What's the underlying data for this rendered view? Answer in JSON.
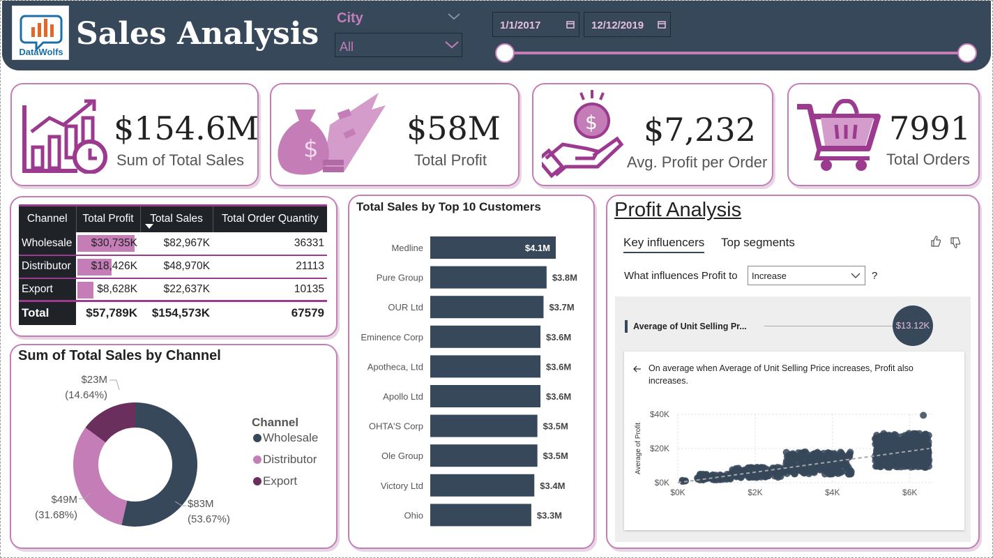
{
  "header": {
    "logo_text": "DataWolfs",
    "title": "Sales Analysis",
    "city_label": "City",
    "city_value": "All",
    "date_start": "1/1/2017",
    "date_end": "12/12/2019"
  },
  "kpis": [
    {
      "value": "$154.6M",
      "label": "Sum of Total Sales",
      "icon": "chart-clock-icon"
    },
    {
      "value": "$58M",
      "label": "Total Profit",
      "icon": "money-bag-icon"
    },
    {
      "value": "$7,232",
      "label": "Avg. Profit per Order",
      "icon": "hand-coin-icon"
    },
    {
      "value": "7991",
      "label": "Total Orders",
      "icon": "shopping-cart-icon"
    }
  ],
  "table": {
    "headers": [
      "Channel",
      "Total Profit",
      "Total Sales",
      "Total Order Quantity"
    ],
    "rows": [
      {
        "channel": "Wholesale",
        "profit": "$30,735K",
        "sales": "$82,967K",
        "qty": "36331",
        "profit_value": 30735
      },
      {
        "channel": "Distributor",
        "profit": "$18,426K",
        "sales": "$48,970K",
        "qty": "21113",
        "profit_value": 18426
      },
      {
        "channel": "Export",
        "profit": "$8,628K",
        "sales": "$22,637K",
        "qty": "10135",
        "profit_value": 8628
      }
    ],
    "total": {
      "label": "Total",
      "profit": "$57,789K",
      "sales": "$154,573K",
      "qty": "67579"
    }
  },
  "donut": {
    "title": "Sum of Total Sales by Channel",
    "legend_title": "Channel",
    "labels": [
      {
        "value": "$83M",
        "pct": "(53.67%)"
      },
      {
        "value": "$49M",
        "pct": "(31.68%)"
      },
      {
        "value": "$23M",
        "pct": "(14.64%)"
      }
    ]
  },
  "bars": {
    "title": "Total Sales by Top 10 Customers"
  },
  "profit": {
    "title": "Profit Analysis",
    "tab_key": "Key influencers",
    "tab_top": "Top segments",
    "question": "What influences Profit to",
    "dropdown_value": "Increase",
    "question_mark": "?",
    "influencer": "Average of Unit Selling Pr...",
    "bubble": "$13.12K",
    "detail": "On average when Average of Unit Selling Price increases, Profit also increases.",
    "y_title": "Average of Profit",
    "y_ticks": [
      "$40K",
      "$20K",
      "$0K"
    ],
    "x_ticks": [
      "$0K",
      "$2K",
      "$4K",
      "$6K"
    ]
  },
  "chart_data": [
    {
      "type": "bar",
      "title": "Total Sales by Top 10 Customers",
      "orientation": "horizontal",
      "categories": [
        "Medline",
        "Pure Group",
        "OUR Ltd",
        "Eminence Corp",
        "Apotheca, Ltd",
        "Apollo Ltd",
        "OHTA'S Corp",
        "Ole Group",
        "Victory Ltd",
        "Ohio"
      ],
      "values": [
        4.1,
        3.8,
        3.7,
        3.6,
        3.6,
        3.6,
        3.5,
        3.5,
        3.4,
        3.3
      ],
      "value_labels": [
        "$4.1M",
        "$3.8M",
        "$3.7M",
        "$3.6M",
        "$3.6M",
        "$3.6M",
        "$3.5M",
        "$3.5M",
        "$3.4M",
        "$3.3M"
      ],
      "unit": "$M",
      "color": "#36485a"
    },
    {
      "type": "pie",
      "title": "Sum of Total Sales by Channel",
      "legend_title": "Channel",
      "legend_position": "right",
      "categories": [
        "Wholesale",
        "Distributor",
        "Export"
      ],
      "values": [
        83,
        49,
        23
      ],
      "percentages": [
        53.67,
        31.68,
        14.64
      ],
      "colors": [
        "#36485a",
        "#c47db7",
        "#6b2f5e"
      ]
    },
    {
      "type": "scatter",
      "xlabel": "",
      "ylabel": "Average of Profit",
      "xlim": [
        0,
        6.6
      ],
      "ylim": [
        0,
        40
      ],
      "x_unit": "$K",
      "y_unit": "$K",
      "clusters": [
        {
          "x_range": [
            0.1,
            0.3
          ],
          "y_range": [
            0.5,
            1.5
          ],
          "count": 4
        },
        {
          "x_range": [
            0.5,
            1.4
          ],
          "y_range": [
            1.5,
            5
          ],
          "count": 60
        },
        {
          "x_range": [
            1.4,
            2.8
          ],
          "y_range": [
            3,
            9
          ],
          "count": 120
        },
        {
          "x_range": [
            2.8,
            4.5
          ],
          "y_range": [
            5,
            18
          ],
          "count": 240
        },
        {
          "x_range": [
            5.1,
            6.5
          ],
          "y_range": [
            9,
            29
          ],
          "count": 380
        },
        {
          "x_range": [
            6.3,
            6.4
          ],
          "y_range": [
            39,
            39.5
          ],
          "count": 1
        }
      ],
      "trend": {
        "x": [
          0,
          6.5
        ],
        "y": [
          0,
          20
        ]
      },
      "color": "#36485a"
    }
  ]
}
